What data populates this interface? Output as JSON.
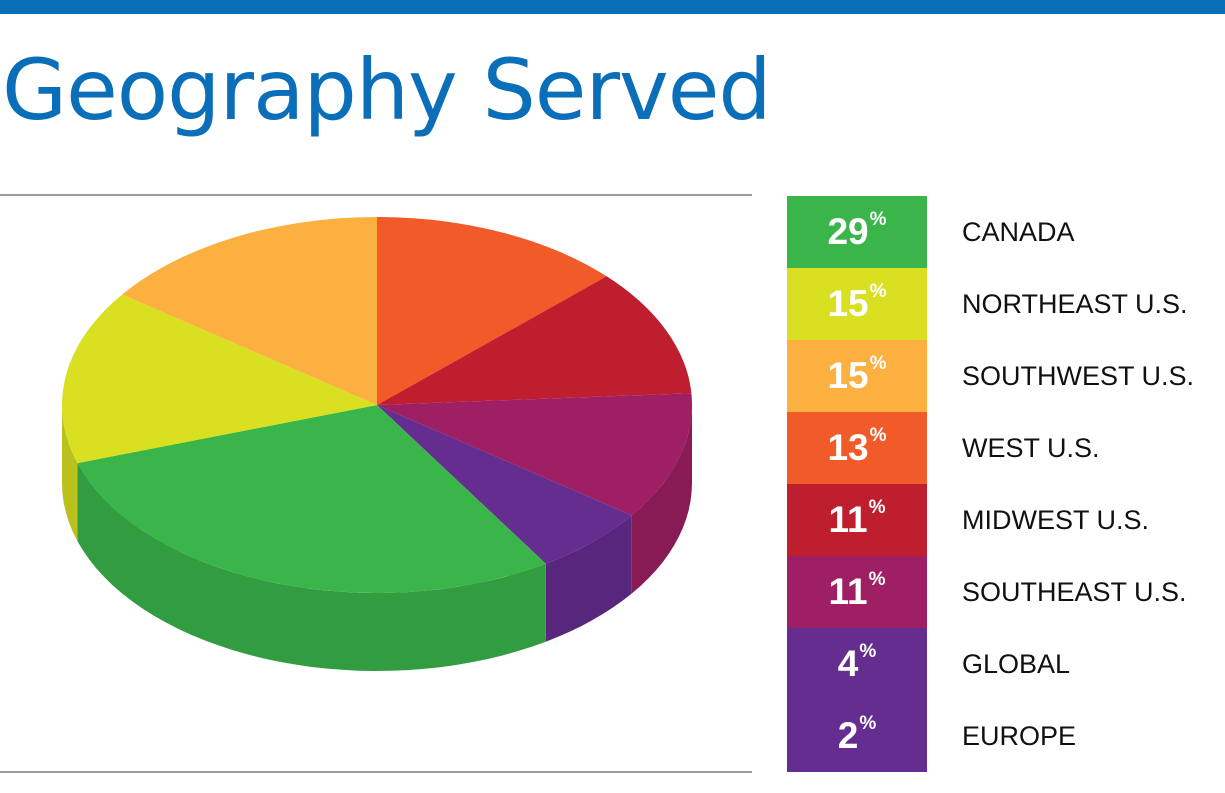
{
  "title": "Geography Served",
  "colors": {
    "brand": "#0a6fb8"
  },
  "chart_data": {
    "type": "pie",
    "title": "Geography Served",
    "unit": "%",
    "categories": [
      "CANADA",
      "NORTHEAST U.S.",
      "SOUTHWEST U.S.",
      "WEST U.S.",
      "MIDWEST U.S.",
      "SOUTHEAST U.S.",
      "GLOBAL",
      "EUROPE"
    ],
    "values": [
      29,
      15,
      15,
      13,
      11,
      11,
      4,
      2
    ],
    "value_labels": [
      "29",
      "15",
      "15",
      "13",
      "11",
      "11",
      "4",
      "2"
    ],
    "colors": [
      "#3ab54a",
      "#d9e021",
      "#fbb040",
      "#f15a29",
      "#be1e2d",
      "#9e1f63",
      "#662d91",
      "#662d91"
    ],
    "legend": "right"
  }
}
